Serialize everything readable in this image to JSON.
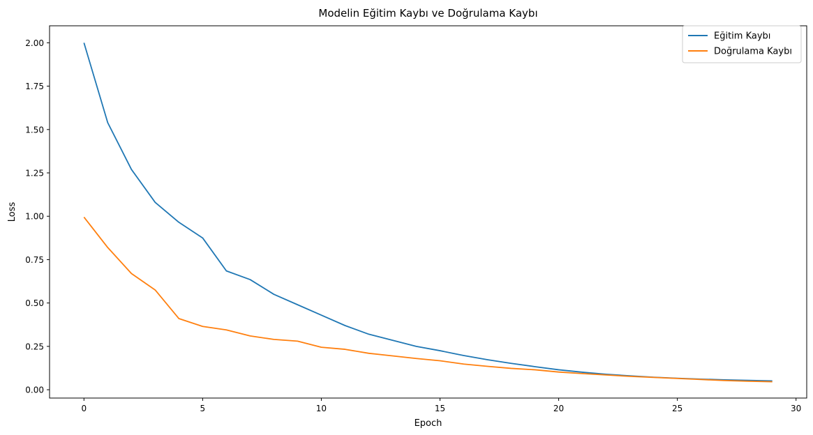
{
  "chart_data": {
    "type": "line",
    "title": "Modelin Eğitim Kaybı ve Doğrulama Kaybı",
    "xlabel": "Epoch",
    "ylabel": "Loss",
    "xlim": [
      -1.45,
      30.45
    ],
    "ylim": [
      -0.048,
      2.098
    ],
    "xticks": [
      0,
      5,
      10,
      15,
      20,
      25,
      30
    ],
    "xtick_labels": [
      "0",
      "5",
      "10",
      "15",
      "20",
      "25",
      "30"
    ],
    "yticks": [
      0.0,
      0.25,
      0.5,
      0.75,
      1.0,
      1.25,
      1.5,
      1.75,
      2.0
    ],
    "ytick_labels": [
      "0.00",
      "0.25",
      "0.50",
      "0.75",
      "1.00",
      "1.25",
      "1.50",
      "1.75",
      "2.00"
    ],
    "grid": false,
    "legend_position": "top-right",
    "x": [
      0,
      1,
      2,
      3,
      4,
      5,
      6,
      7,
      8,
      9,
      10,
      11,
      12,
      13,
      14,
      15,
      16,
      17,
      18,
      19,
      20,
      21,
      22,
      23,
      24,
      25,
      26,
      27,
      28,
      29
    ],
    "series": [
      {
        "name": "Eğitim Kaybı",
        "color": "#1f77b4",
        "values": [
          2.0,
          1.54,
          1.27,
          1.08,
          0.965,
          0.875,
          0.685,
          0.635,
          0.55,
          0.49,
          0.43,
          0.37,
          0.32,
          0.285,
          0.25,
          0.225,
          0.197,
          0.173,
          0.152,
          0.133,
          0.115,
          0.101,
          0.089,
          0.08,
          0.072,
          0.066,
          0.061,
          0.057,
          0.054,
          0.051
        ]
      },
      {
        "name": "Doğrulama Kaybı",
        "color": "#ff7f0e",
        "values": [
          0.995,
          0.82,
          0.67,
          0.575,
          0.41,
          0.365,
          0.345,
          0.31,
          0.29,
          0.28,
          0.245,
          0.233,
          0.21,
          0.195,
          0.18,
          0.167,
          0.148,
          0.135,
          0.123,
          0.115,
          0.102,
          0.093,
          0.085,
          0.077,
          0.071,
          0.065,
          0.059,
          0.053,
          0.049,
          0.046
        ]
      }
    ]
  }
}
